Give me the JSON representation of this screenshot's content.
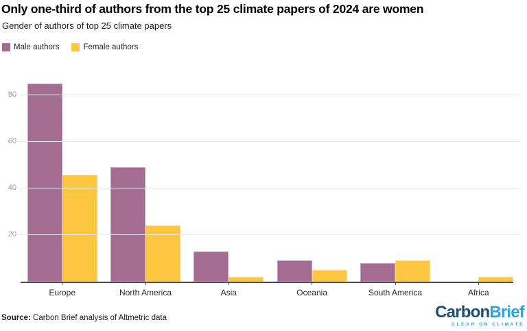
{
  "header": {
    "title": "Only one-third of authors from the top 25 climate papers of 2024 are women",
    "subtitle": "Gender of authors of top 25 climate papers"
  },
  "legend": [
    {
      "label": "Male authors",
      "color": "#a56c92"
    },
    {
      "label": "Female authors",
      "color": "#ffc640"
    }
  ],
  "chart_data": {
    "type": "bar",
    "categories": [
      "Europe",
      "North America",
      "Asia",
      "Oceania",
      "South America",
      "Africa"
    ],
    "series": [
      {
        "name": "Male authors",
        "color": "#a56c92",
        "values": [
          85,
          49,
          13,
          9,
          8,
          0
        ]
      },
      {
        "name": "Female authors",
        "color": "#ffc640",
        "values": [
          46,
          24,
          2,
          5,
          9,
          2
        ]
      }
    ],
    "title": "Only one-third of authors from the top 25 climate papers of 2024 are women",
    "subtitle": "Gender of authors of top 25 climate papers",
    "xlabel": "",
    "ylabel": "",
    "ylim": [
      0,
      90
    ],
    "yticks": [
      20,
      40,
      60,
      80
    ],
    "grid": true,
    "legend_position": "top-left"
  },
  "footer": {
    "source_label": "Source:",
    "source_text": " Carbon Brief analysis of Altmetric data",
    "logo": {
      "part1": "Carbon",
      "part2": "Brief",
      "tagline": "CLEAR ON CLIMATE",
      "color_dark": "#1d4f76",
      "color_light": "#2fa3dc"
    }
  }
}
